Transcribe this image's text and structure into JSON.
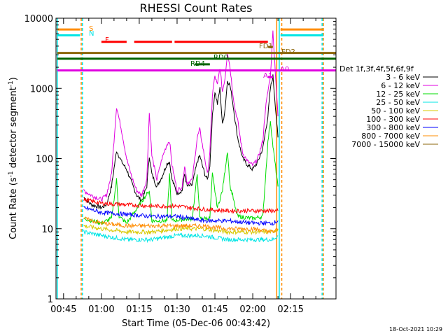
{
  "chart_data": {
    "type": "line",
    "title": "RHESSI Count Rates",
    "xlabel": "Start Time (05-Dec-06 00:43:42)",
    "ylabel_parts": [
      "Count Rate (s",
      "-1",
      " detector segment",
      "-1",
      ")"
    ],
    "y_scale": "log",
    "ylim": [
      1,
      10000
    ],
    "xlim_minutes": [
      42,
      153
    ],
    "x_ticks": [
      {
        "m": 45,
        "label": "00:45"
      },
      {
        "m": 60,
        "label": "01:00"
      },
      {
        "m": 75,
        "label": "01:15"
      },
      {
        "m": 90,
        "label": "01:30"
      },
      {
        "m": 105,
        "label": "01:45"
      },
      {
        "m": 120,
        "label": "02:00"
      },
      {
        "m": 135,
        "label": "02:15"
      }
    ],
    "y_ticks": [
      {
        "v": 1,
        "label": "1"
      },
      {
        "v": 10,
        "label": "10"
      },
      {
        "v": 100,
        "label": "100"
      },
      {
        "v": 1000,
        "label": "1000"
      },
      {
        "v": 10000,
        "label": "10000"
      }
    ],
    "grid": false,
    "legend_position": "right",
    "legend_title": "Det 1f,3f,4f,5f,6f,9f",
    "series": [
      {
        "name": "3 - 6 keV",
        "color": "#000000"
      },
      {
        "name": "6 - 12 keV",
        "color": "#e000e0"
      },
      {
        "name": "12 - 25 keV",
        "color": "#00dd00"
      },
      {
        "name": "25 - 50 keV",
        "color": "#00e5e5"
      },
      {
        "name": "50 - 100 keV",
        "color": "#d8c800"
      },
      {
        "name": "100 - 300 keV",
        "color": "#ff0000"
      },
      {
        "name": "300 - 800 keV",
        "color": "#0000ff"
      },
      {
        "name": "800 - 7000 keV",
        "color": "#ff8c00"
      },
      {
        "name": "7000 - 15000 keV",
        "color": "#8b6508"
      }
    ],
    "series_points": {
      "3 - 6 keV": [
        [
          53,
          28
        ],
        [
          56,
          22
        ],
        [
          60,
          20
        ],
        [
          62,
          22
        ],
        [
          64,
          40
        ],
        [
          66,
          130
        ],
        [
          68,
          90
        ],
        [
          70,
          70
        ],
        [
          72,
          45
        ],
        [
          74,
          30
        ],
        [
          76,
          25
        ],
        [
          78,
          40
        ],
        [
          79,
          110
        ],
        [
          80,
          60
        ],
        [
          82,
          40
        ],
        [
          84,
          55
        ],
        [
          86,
          85
        ],
        [
          87,
          90
        ],
        [
          88,
          50
        ],
        [
          90,
          32
        ],
        [
          92,
          35
        ],
        [
          93,
          60
        ],
        [
          94,
          40
        ],
        [
          96,
          42
        ],
        [
          98,
          90
        ],
        [
          99,
          110
        ],
        [
          100,
          80
        ],
        [
          101,
          60
        ],
        [
          102,
          50
        ],
        [
          103,
          80
        ],
        [
          104,
          400
        ],
        [
          105,
          900
        ],
        [
          106,
          600
        ],
        [
          107,
          1000
        ],
        [
          108,
          300
        ],
        [
          109,
          500
        ],
        [
          110,
          1300
        ],
        [
          111,
          1100
        ],
        [
          112,
          650
        ],
        [
          113,
          350
        ],
        [
          114,
          200
        ],
        [
          115,
          140
        ],
        [
          116,
          100
        ],
        [
          118,
          80
        ],
        [
          120,
          70
        ],
        [
          122,
          90
        ],
        [
          124,
          140
        ],
        [
          126,
          400
        ],
        [
          127,
          1000
        ],
        [
          128,
          1500
        ],
        [
          130,
          200
        ]
      ],
      "6 - 12 keV": [
        [
          53,
          35
        ],
        [
          56,
          30
        ],
        [
          60,
          26
        ],
        [
          62,
          30
        ],
        [
          64,
          60
        ],
        [
          66,
          550
        ],
        [
          68,
          250
        ],
        [
          70,
          100
        ],
        [
          72,
          55
        ],
        [
          74,
          35
        ],
        [
          76,
          30
        ],
        [
          78,
          50
        ],
        [
          79,
          450
        ],
        [
          80,
          110
        ],
        [
          82,
          50
        ],
        [
          84,
          100
        ],
        [
          86,
          160
        ],
        [
          87,
          180
        ],
        [
          88,
          80
        ],
        [
          90,
          35
        ],
        [
          92,
          40
        ],
        [
          93,
          80
        ],
        [
          94,
          45
        ],
        [
          96,
          50
        ],
        [
          98,
          200
        ],
        [
          99,
          260
        ],
        [
          100,
          160
        ],
        [
          101,
          100
        ],
        [
          102,
          60
        ],
        [
          103,
          120
        ],
        [
          104,
          800
        ],
        [
          105,
          1500
        ],
        [
          106,
          1100
        ],
        [
          107,
          2000
        ],
        [
          108,
          900
        ],
        [
          109,
          1400
        ],
        [
          110,
          3300
        ],
        [
          111,
          2000
        ],
        [
          112,
          900
        ],
        [
          113,
          500
        ],
        [
          114,
          350
        ],
        [
          115,
          200
        ],
        [
          116,
          120
        ],
        [
          118,
          90
        ],
        [
          120,
          80
        ],
        [
          122,
          100
        ],
        [
          124,
          180
        ],
        [
          125,
          500
        ],
        [
          126,
          900
        ],
        [
          127,
          1500
        ],
        [
          128,
          6500
        ],
        [
          130,
          400
        ]
      ],
      "12 - 25 keV": [
        [
          53,
          14
        ],
        [
          60,
          12
        ],
        [
          64,
          14
        ],
        [
          66,
          50
        ],
        [
          67,
          15
        ],
        [
          70,
          12
        ],
        [
          79,
          35
        ],
        [
          80,
          13
        ],
        [
          86,
          13
        ],
        [
          87,
          60
        ],
        [
          88,
          13
        ],
        [
          96,
          14
        ],
        [
          98,
          60
        ],
        [
          99,
          14
        ],
        [
          103,
          14
        ],
        [
          104,
          60
        ],
        [
          106,
          20
        ],
        [
          108,
          35
        ],
        [
          110,
          130
        ],
        [
          111,
          40
        ],
        [
          112,
          30
        ],
        [
          113,
          20
        ],
        [
          114,
          15
        ],
        [
          120,
          14
        ],
        [
          124,
          15
        ],
        [
          126,
          170
        ],
        [
          127,
          350
        ],
        [
          128,
          150
        ],
        [
          130,
          40
        ]
      ],
      "25 - 50 keV": [
        [
          53,
          9
        ],
        [
          60,
          8
        ],
        [
          70,
          7
        ],
        [
          80,
          7
        ],
        [
          90,
          8
        ],
        [
          100,
          8
        ],
        [
          110,
          7
        ],
        [
          120,
          7
        ],
        [
          128,
          7
        ],
        [
          130,
          8
        ]
      ],
      "50 - 100 keV": [
        [
          53,
          11
        ],
        [
          60,
          10
        ],
        [
          70,
          9
        ],
        [
          80,
          9
        ],
        [
          90,
          10
        ],
        [
          100,
          10
        ],
        [
          110,
          9
        ],
        [
          120,
          9
        ],
        [
          128,
          9
        ],
        [
          130,
          10
        ]
      ],
      "100 - 300 keV": [
        [
          53,
          26
        ],
        [
          60,
          23
        ],
        [
          70,
          22
        ],
        [
          80,
          21
        ],
        [
          90,
          21
        ],
        [
          95,
          20
        ],
        [
          100,
          19
        ],
        [
          110,
          18
        ],
        [
          120,
          18
        ],
        [
          128,
          18
        ],
        [
          130,
          18
        ]
      ],
      "300 - 800 keV": [
        [
          53,
          20
        ],
        [
          60,
          17
        ],
        [
          70,
          16
        ],
        [
          80,
          15
        ],
        [
          90,
          15
        ],
        [
          100,
          13
        ],
        [
          110,
          13
        ],
        [
          120,
          12
        ],
        [
          128,
          12
        ],
        [
          130,
          13
        ]
      ],
      "800 - 7000 keV": [
        [
          53,
          14
        ],
        [
          60,
          12
        ],
        [
          70,
          11
        ],
        [
          80,
          11
        ],
        [
          90,
          11
        ],
        [
          100,
          11
        ],
        [
          110,
          10
        ],
        [
          120,
          10
        ],
        [
          128,
          9
        ],
        [
          130,
          10
        ]
      ],
      "7000 - 15000 keV": []
    },
    "attenuator_flags": [
      {
        "label": "S",
        "color": "#ff8c00",
        "segments": [
          [
            42.5,
            51.5
          ],
          [
            131,
            148
          ]
        ],
        "value": 6900
      },
      {
        "label": "N",
        "color": "#00e5e5",
        "segments": [
          [
            42.5,
            51.5
          ],
          [
            131,
            148
          ]
        ],
        "value": 5700
      },
      {
        "label": "F",
        "color": "#ff0000",
        "segments": [
          [
            60,
            70
          ],
          [
            73,
            88
          ],
          [
            89,
            126
          ]
        ],
        "value": 4600
      },
      {
        "label": "FD1",
        "color": "#8b6508",
        "segments": [
          [
            126,
            128
          ]
        ],
        "value": 3900
      },
      {
        "label": "FD2",
        "color": "#8b6508",
        "segments": [
          [
            42.5,
            153
          ]
        ],
        "value": 3200
      },
      {
        "label": "RD0",
        "color": "#006400",
        "segments": [
          [
            42.5,
            153
          ]
        ],
        "value": 2650
      },
      {
        "label": "RD4",
        "color": "#006400",
        "segments": [
          [
            97,
            103
          ]
        ],
        "value": 2200
      },
      {
        "label": "A1",
        "color": "#e000e0",
        "segments": [
          [
            42.5,
            153
          ]
        ],
        "value": 1800
      },
      {
        "label": "A0",
        "color": "#e000e0",
        "segments": [
          [
            126,
            128
          ]
        ],
        "value": 1450
      }
    ],
    "vertical_markers": [
      {
        "m": 42.5,
        "color": "#00e5e5",
        "style": "solid"
      },
      {
        "m": 52,
        "color": "#ff8c00",
        "style": "dashed"
      },
      {
        "m": 52.5,
        "color": "#00e5e5",
        "style": "dashed"
      },
      {
        "m": 129.5,
        "color": "#ff8c00",
        "style": "solid"
      },
      {
        "m": 130.5,
        "color": "#00e5e5",
        "style": "solid"
      },
      {
        "m": 131.5,
        "color": "#ff8c00",
        "style": "dashed"
      },
      {
        "m": 147.5,
        "color": "#00e5e5",
        "style": "dashed"
      },
      {
        "m": 148,
        "color": "#ff8c00",
        "style": "dashed"
      }
    ]
  },
  "footer_date": "18-Oct-2021 10:29"
}
